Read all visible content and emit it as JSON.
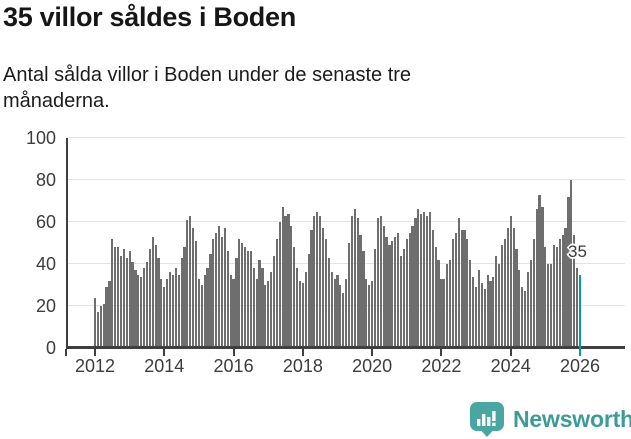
{
  "header": {
    "title": "35 villor såldes i Boden",
    "subtitle": "Antal sålda villor i Boden under de senaste tre månaderna."
  },
  "chart_data": {
    "type": "bar",
    "title": "35 villor såldes i Boden",
    "subtitle": "Antal sålda villor i Boden under de senaste tre månaderna.",
    "xlabel": "",
    "ylabel": "",
    "ylim": [
      0,
      100
    ],
    "y_ticks": [
      0,
      20,
      40,
      60,
      80,
      100
    ],
    "x_ticks": [
      "2012",
      "2014",
      "2016",
      "2018",
      "2020",
      "2022",
      "2024",
      "2026"
    ],
    "x_period": "monthly, Jan 2012 to Jan 2026, rolling 3-month totals",
    "grid": true,
    "legend_position": "none",
    "bar_color": "#6e6e6e",
    "highlight": {
      "index": 168,
      "label": "35",
      "color": "#009fa0"
    },
    "values": [
      24,
      17,
      20,
      21,
      29,
      32,
      52,
      48,
      48,
      44,
      47,
      43,
      46,
      41,
      37,
      35,
      34,
      38,
      41,
      47,
      53,
      49,
      43,
      33,
      29,
      33,
      36,
      35,
      38,
      35,
      43,
      48,
      61,
      63,
      57,
      51,
      33,
      30,
      35,
      38,
      45,
      52,
      55,
      58,
      53,
      57,
      46,
      35,
      33,
      43,
      52,
      50,
      48,
      46,
      46,
      38,
      33,
      42,
      38,
      30,
      32,
      36,
      44,
      52,
      60,
      67,
      63,
      64,
      58,
      48,
      38,
      32,
      31,
      36,
      45,
      56,
      63,
      65,
      63,
      57,
      52,
      43,
      36,
      33,
      35,
      30,
      26,
      33,
      50,
      63,
      66,
      62,
      54,
      46,
      33,
      30,
      32,
      47,
      62,
      63,
      58,
      53,
      49,
      51,
      53,
      55,
      44,
      47,
      52,
      55,
      58,
      62,
      66,
      64,
      65,
      63,
      65,
      56,
      48,
      42,
      33,
      33,
      40,
      42,
      52,
      55,
      62,
      56,
      56,
      52,
      42,
      34,
      29,
      37,
      31,
      28,
      35,
      32,
      34,
      44,
      40,
      49,
      52,
      57,
      63,
      57,
      47,
      37,
      29,
      27,
      36,
      42,
      52,
      66,
      73,
      67,
      48,
      40,
      40,
      49,
      48,
      52,
      54,
      57,
      72,
      80,
      54,
      38,
      35
    ]
  },
  "footer": {
    "brand": "Newsworthy",
    "brand_color": "#3e9c98",
    "logo_icon": "speech-bubble-bar-chart"
  },
  "colors": {
    "bar": "#6e6e6e",
    "highlight": "#009fa0",
    "axis": "#3f3f3f",
    "gridline": "#e3e3e3",
    "text": "#1c1c1c"
  }
}
